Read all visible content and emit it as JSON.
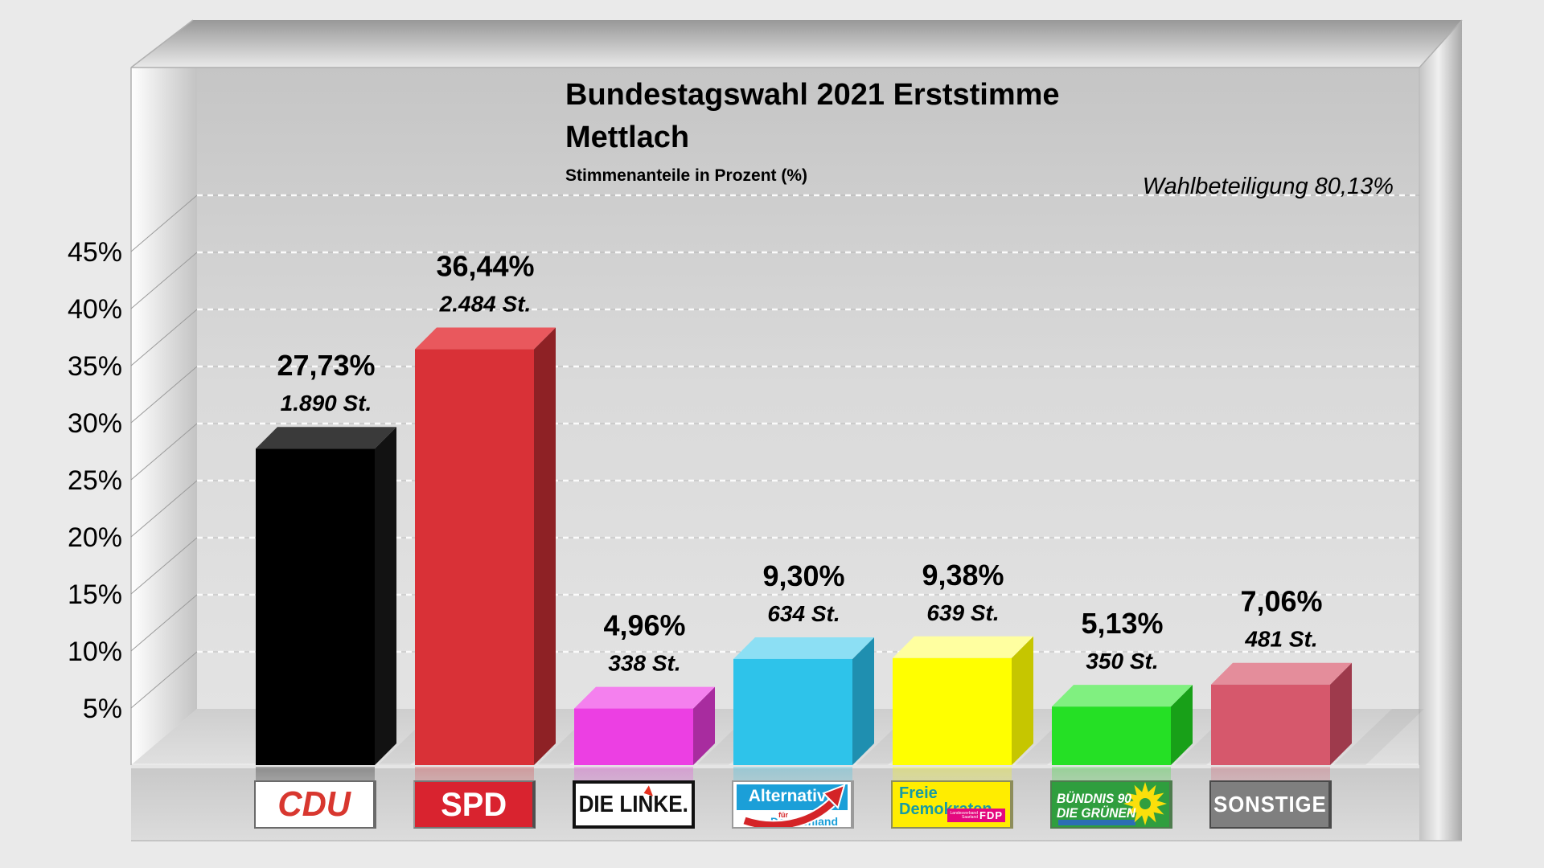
{
  "page": {
    "background": "#eaeaea"
  },
  "header": {
    "title_line1": "Bundestagswahl 2021 Erststimme",
    "title_line2": "Mettlach",
    "subtitle": "Stimmenanteile in Prozent (%)",
    "turnout": "Wahlbeteiligung 80,13%"
  },
  "chart_data": {
    "type": "bar",
    "title": "Bundestagswahl 2021 Erststimme Mettlach",
    "subtitle": "Stimmenanteile in Prozent (%)",
    "turnout_percent": 80.13,
    "ylim": [
      0,
      50
    ],
    "ytick_step_pct": 5,
    "ytick_labels": [
      "5%",
      "10%",
      "15%",
      "20%",
      "25%",
      "30%",
      "35%",
      "40%",
      "45%"
    ],
    "grid": "dashed horizontal gridlines on 3D back wall",
    "legend_position": "none",
    "categories": [
      "CDU",
      "SPD",
      "DIE LINKE",
      "AfD",
      "FDP",
      "BÜNDNIS 90/DIE GRÜNEN",
      "SONSTIGE"
    ],
    "series": [
      {
        "name": "Erststimme %",
        "values": [
          27.73,
          36.44,
          4.96,
          9.3,
          9.38,
          5.13,
          7.06
        ]
      }
    ],
    "votes": [
      1890,
      2484,
      338,
      634,
      639,
      350,
      481
    ],
    "bars": [
      {
        "party": "CDU",
        "pct": 27.73,
        "pct_label": "27,73%",
        "votes_label": "1.890 St.",
        "color": "#000000",
        "color_top": "#3a3a3a",
        "color_side": "#121212"
      },
      {
        "party": "SPD",
        "pct": 36.44,
        "pct_label": "36,44%",
        "votes_label": "2.484 St.",
        "color": "#d93137",
        "color_top": "#e9585d",
        "color_side": "#8e2125"
      },
      {
        "party": "DIE LINKE",
        "pct": 4.96,
        "pct_label": "4,96%",
        "votes_label": "338 St.",
        "color": "#ec3fe3",
        "color_top": "#f480ee",
        "color_side": "#a82c9f"
      },
      {
        "party": "AfD",
        "pct": 9.3,
        "pct_label": "9,30%",
        "votes_label": "634 St.",
        "color": "#2ec3ea",
        "color_top": "#8cdff4",
        "color_side": "#1f8fb0"
      },
      {
        "party": "FDP",
        "pct": 9.38,
        "pct_label": "9,38%",
        "votes_label": "639 St.",
        "color": "#ffff00",
        "color_top": "#ffffa0",
        "color_side": "#c6c600"
      },
      {
        "party": "GRÜNE",
        "pct": 5.13,
        "pct_label": "5,13%",
        "votes_label": "350 St.",
        "color": "#25e025",
        "color_top": "#80f080",
        "color_side": "#18a018"
      },
      {
        "party": "SONSTIGE",
        "pct": 7.06,
        "pct_label": "7,06%",
        "votes_label": "481 St.",
        "color": "#d6586c",
        "color_top": "#e48d9b",
        "color_side": "#9e3a4c"
      }
    ]
  },
  "logos": {
    "cdu": {
      "text": "CDU",
      "text_color": "#d8372f",
      "bg": "#ffffff"
    },
    "spd": {
      "text": "SPD",
      "text_color": "#ffffff",
      "bg": "#d9232f"
    },
    "linke": {
      "text": "DIE LINKE.",
      "text_color": "#111111",
      "bg": "#ffffff",
      "accent": "#e6301e"
    },
    "afd": {
      "line1": "Alternative",
      "fuer": "für",
      "line2": "Deutschland",
      "blue": "#1b9fd8",
      "red": "#d42427",
      "bg": "#ffffff"
    },
    "fdp": {
      "line1": "Freie",
      "line2": "Demokraten",
      "small1": "Landesverband",
      "small2": "Saarland",
      "abbr": "FDP",
      "teal": "#169ba4",
      "magenta": "#e4087e",
      "bg": "#ffed00"
    },
    "gruene": {
      "line1": "BÜNDNIS 90",
      "line2": "DIE GRÜNEN",
      "text_color": "#ffffff",
      "bg": "#2f9e3e",
      "sunflower": "#fadf0b",
      "stripe": "#2c6eb5"
    },
    "sonstige": {
      "text": "SONSTIGE",
      "text_color": "#ffffff",
      "bg": "#7f7f7f"
    }
  }
}
